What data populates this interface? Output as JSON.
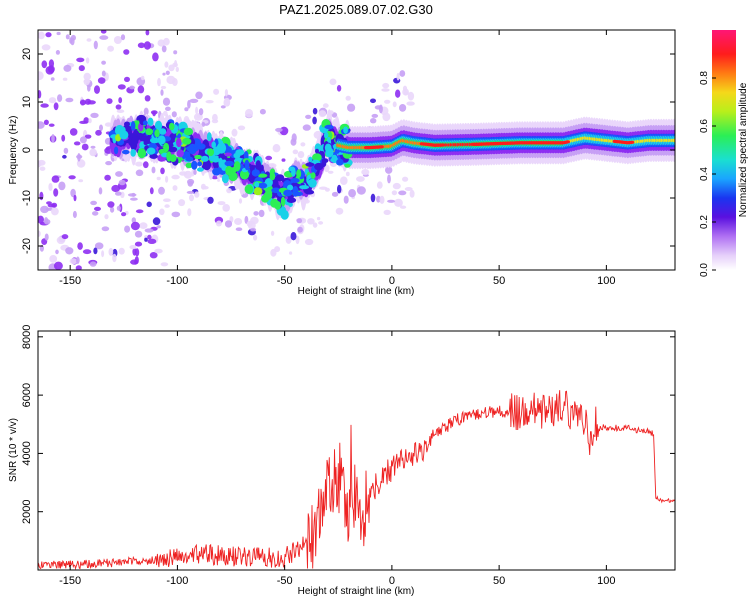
{
  "title": "PAZ1.2025.089.07.02.G30",
  "colors": {
    "snr_line": "#ee2222",
    "frame": "#000000",
    "colormap": [
      "#ffffff",
      "#ead7fb",
      "#c7a0f5",
      "#8e2ff2",
      "#3a16d9",
      "#1a55ff",
      "#1ad1e8",
      "#2bef55",
      "#9cef1b",
      "#f0e11a",
      "#ff7a13",
      "#ff1c1c",
      "#ff1675"
    ]
  },
  "chart_data": [
    {
      "type": "heatmap",
      "xlabel": "Height of straight line (km)",
      "ylabel": "Frequency (Hz)",
      "xlim": [
        -165,
        132
      ],
      "ylim": [
        -25,
        25
      ],
      "xticks": [
        -150,
        -100,
        -50,
        0,
        50,
        100
      ],
      "yticks": [
        -20,
        -10,
        0,
        10,
        20
      ],
      "colorbar": {
        "label": "Normalized spectral amplitude",
        "range": [
          0,
          1
        ],
        "ticks": [
          "0.0",
          "0.2",
          "0.4",
          "0.6",
          "0.8"
        ]
      },
      "ridge": {
        "x": [
          -130,
          -115,
          -100,
          -90,
          -80,
          -70,
          -60,
          -50,
          -45,
          -40,
          -35,
          -30,
          -25,
          -20,
          -10,
          0,
          5,
          10,
          20,
          40,
          60,
          80,
          90,
          100,
          110,
          120,
          132
        ],
        "frequency": [
          2,
          3,
          1.5,
          0,
          -1.5,
          -3.5,
          -6,
          -10,
          -6,
          -7,
          -4,
          3,
          1,
          0.5,
          0.5,
          0.8,
          2,
          1.5,
          1,
          1.2,
          1.5,
          1.5,
          2.5,
          2,
          1.5,
          2,
          2
        ]
      }
    },
    {
      "type": "line",
      "xlabel": "Height of straight line (km)",
      "ylabel": "SNR (10 * v/v)",
      "xlim": [
        -165,
        132
      ],
      "ylim": [
        0,
        8200
      ],
      "xticks": [
        -150,
        -100,
        -50,
        0,
        50,
        100
      ],
      "yticks": [
        2000,
        4000,
        6000,
        8000
      ],
      "series": [
        {
          "x": [
            -165,
            -150,
            -130,
            -110,
            -100,
            -90,
            -80,
            -60,
            -50,
            -45,
            -38,
            -34,
            -32,
            -30,
            -28,
            -25,
            -22,
            -20,
            -18,
            -15,
            -12,
            -10,
            -5,
            0,
            5,
            10,
            15,
            20,
            25,
            30,
            40,
            50,
            60,
            70,
            80,
            85,
            90,
            93,
            95,
            96,
            100,
            110,
            120,
            122,
            123,
            125,
            132
          ],
          "y": [
            150,
            180,
            250,
            350,
            480,
            550,
            500,
            420,
            420,
            650,
            1000,
            1500,
            2300,
            2800,
            2600,
            3300,
            2500,
            1400,
            2600,
            1500,
            2200,
            2700,
            3100,
            3500,
            3800,
            3900,
            4200,
            4600,
            4900,
            5150,
            5350,
            5450,
            5400,
            5500,
            5600,
            5350,
            5100,
            4200,
            5100,
            4900,
            4900,
            4850,
            4750,
            4700,
            2500,
            2400,
            2400
          ]
        }
      ]
    }
  ]
}
